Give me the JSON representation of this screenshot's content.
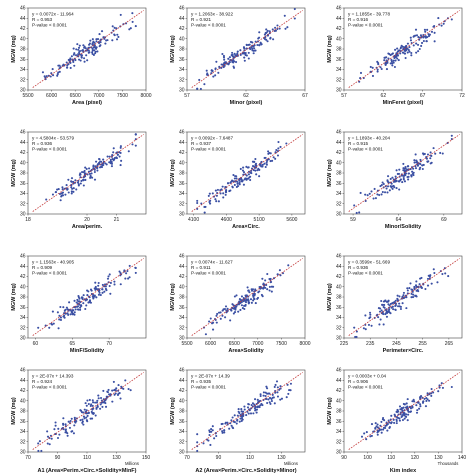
{
  "chart_data": [
    {
      "type": "scatter",
      "xlabel": "Area (pixel)",
      "ylabel": "MGW (mg)",
      "xlim": [
        5500,
        8000
      ],
      "ylim": [
        30,
        46
      ],
      "xticks": [
        "5500",
        "6000",
        "6500",
        "7000",
        "7500",
        "8000"
      ],
      "yticks": [
        "30",
        "32",
        "34",
        "36",
        "38",
        "40",
        "42",
        "44",
        "46"
      ],
      "x_multiplier": "",
      "equation": "y = 0.0072x - 11.964",
      "r": "R = 0.953",
      "pvalue": "P-value < 0.0001",
      "fit": {
        "slope": 0.0072,
        "intercept": -11.964
      }
    },
    {
      "type": "scatter",
      "xlabel": "Minor (pixel)",
      "ylabel": "MGW (mg)",
      "xlim": [
        57,
        67
      ],
      "ylim": [
        30,
        46
      ],
      "xticks": [
        "57",
        "62",
        "67"
      ],
      "yticks": [
        "30",
        "32",
        "34",
        "36",
        "38",
        "40",
        "42",
        "44",
        "46"
      ],
      "x_multiplier": "",
      "equation": "y = 1.2063x - 38.922",
      "r": "R = 0.921",
      "pvalue": "P-value < 0.0001",
      "fit": {
        "slope": 1.2063,
        "intercept": -38.922
      }
    },
    {
      "type": "scatter",
      "xlabel": "MinFeret (pixel)",
      "ylabel": "MGW (mg)",
      "xlim": [
        57,
        72
      ],
      "ylim": [
        30,
        46
      ],
      "xticks": [
        "57",
        "62",
        "67",
        "72"
      ],
      "yticks": [
        "30",
        "32",
        "34",
        "36",
        "38",
        "40",
        "42",
        "44",
        "46"
      ],
      "x_multiplier": "",
      "equation": "y = 1.1855x - 39.778",
      "r": "R = 0.916",
      "pvalue": "P-value < 0.0001",
      "fit": {
        "slope": 1.1855,
        "intercept": -39.778
      }
    },
    {
      "type": "scatter",
      "xlabel": "Area/perim.",
      "ylabel": "MGW (mg)",
      "xlim": [
        18,
        22
      ],
      "ylim": [
        30,
        46
      ],
      "xticks": [
        "18",
        "20",
        "21"
      ],
      "yticks": [
        "30",
        "32",
        "34",
        "36",
        "38",
        "40",
        "42",
        "44",
        "46"
      ],
      "x_multiplier": "",
      "equation": "y = 4.5804x - 53.579",
      "r": "R = 0.936",
      "pvalue": "P-value < 0.0001",
      "fit": {
        "slope": 4.5804,
        "intercept": -53.579
      }
    },
    {
      "type": "scatter",
      "xlabel": "Area×Circ.",
      "ylabel": "MGW (mg)",
      "xlim": [
        4000,
        5800
      ],
      "ylim": [
        30,
        46
      ],
      "xticks": [
        "4100",
        "4600",
        "5100",
        "5600"
      ],
      "yticks": [
        "30",
        "32",
        "34",
        "36",
        "38",
        "40",
        "42",
        "44",
        "46"
      ],
      "x_multiplier": "",
      "equation": "y = 0.0092x - 7.6487",
      "r": "R = 0.937",
      "pvalue": "P-value < 0.0001",
      "fit": {
        "slope": 0.0092,
        "intercept": -7.6487
      }
    },
    {
      "type": "scatter",
      "xlabel": "Minor/Solidity",
      "ylabel": "MGW (mg)",
      "xlim": [
        58,
        71
      ],
      "ylim": [
        30,
        46
      ],
      "xticks": [
        "59",
        "64",
        "69"
      ],
      "yticks": [
        "30",
        "32",
        "34",
        "36",
        "38",
        "40",
        "42",
        "44",
        "46"
      ],
      "x_multiplier": "",
      "equation": "y = 1.1893x - 40.204",
      "r": "R = 0.915",
      "pvalue": "P-value < 0.0001",
      "fit": {
        "slope": 1.1893,
        "intercept": -40.204
      }
    },
    {
      "type": "scatter",
      "xlabel": "MinF/Solidity",
      "ylabel": "MGW (mg)",
      "xlim": [
        59,
        75
      ],
      "ylim": [
        30,
        46
      ],
      "xticks": [
        "60",
        "65",
        "70"
      ],
      "yticks": [
        "30",
        "32",
        "34",
        "36",
        "38",
        "40",
        "42",
        "44",
        "46"
      ],
      "x_multiplier": "",
      "equation": "y = 1.1563x - 40.905",
      "r": "R = 0.909",
      "pvalue": "P-value < 0.0001",
      "fit": {
        "slope": 1.1563,
        "intercept": -40.905
      }
    },
    {
      "type": "scatter",
      "xlabel": "Area×Solidity",
      "ylabel": "MGW (mg)",
      "xlim": [
        5500,
        8000
      ],
      "ylim": [
        30,
        46
      ],
      "xticks": [
        "5500",
        "6000",
        "6500",
        "7000",
        "7500",
        "8000"
      ],
      "yticks": [
        "30",
        "32",
        "34",
        "36",
        "38",
        "40",
        "42",
        "44",
        "46"
      ],
      "x_multiplier": "",
      "equation": "y = 0.0074x - 11.627",
      "r": "R = 0.911",
      "pvalue": "P-value < 0.0001",
      "fit": {
        "slope": 0.0074,
        "intercept": -11.627
      }
    },
    {
      "type": "scatter",
      "xlabel": "Perimeter×Circ.",
      "ylabel": "MGW (mg)",
      "xlim": [
        225,
        270
      ],
      "ylim": [
        30,
        46
      ],
      "xticks": [
        "225",
        "235",
        "245",
        "255",
        "265"
      ],
      "yticks": [
        "30",
        "32",
        "34",
        "36",
        "38",
        "40",
        "42",
        "44",
        "46"
      ],
      "x_multiplier": "",
      "equation": "y = 0.3599x - 51.669",
      "r": "R = 0.936",
      "pvalue": "P-value < 0.0001",
      "fit": {
        "slope": 0.3599,
        "intercept": -51.669
      }
    },
    {
      "type": "scatter",
      "xlabel": "A1 (Area×Perim.×Circ.×Solidity×MinF)",
      "ylabel": "MGW (mg)",
      "xlim": [
        70,
        150
      ],
      "ylim": [
        30,
        46
      ],
      "xticks": [
        "70",
        "90",
        "110",
        "130",
        "150"
      ],
      "yticks": [
        "30",
        "32",
        "34",
        "36",
        "38",
        "40",
        "42",
        "44",
        "46"
      ],
      "x_multiplier": "Millions",
      "equation": "y = 2E-07x + 14.393",
      "r": "R = 0.924",
      "pvalue": "P-value < 0.0001",
      "fit": {
        "slope": 0.2,
        "intercept": 14.393
      }
    },
    {
      "type": "scatter",
      "xlabel": "A2 (Area×Perim.×Circ.×Solidity×Minor)",
      "ylabel": "MGW (mg)",
      "xlim": [
        70,
        145
      ],
      "ylim": [
        30,
        46
      ],
      "xticks": [
        "70",
        "90",
        "110",
        "130"
      ],
      "yticks": [
        "30",
        "32",
        "34",
        "36",
        "38",
        "40",
        "42",
        "44",
        "46"
      ],
      "x_multiplier": "Millions",
      "equation": "y = 2E-07x + 14.39",
      "r": "R = 0.935",
      "pvalue": "P-value < 0.0001",
      "fit": {
        "slope": 0.2,
        "intercept": 14.39
      }
    },
    {
      "type": "scatter",
      "xlabel": "Kim index",
      "ylabel": "MGW (mg)",
      "xlim": [
        90,
        140
      ],
      "ylim": [
        30,
        46
      ],
      "xticks": [
        "90",
        "100",
        "110",
        "120",
        "130",
        "140"
      ],
      "yticks": [
        "30",
        "32",
        "34",
        "36",
        "38",
        "40",
        "42",
        "44",
        "46"
      ],
      "x_multiplier": "Thousands",
      "equation": "y = 0.0003x + 0.04",
      "r": "R = 0.906",
      "pvalue": "P-value < 0.0001",
      "fit": {
        "slope": 0.3,
        "intercept": 0.04
      }
    }
  ]
}
